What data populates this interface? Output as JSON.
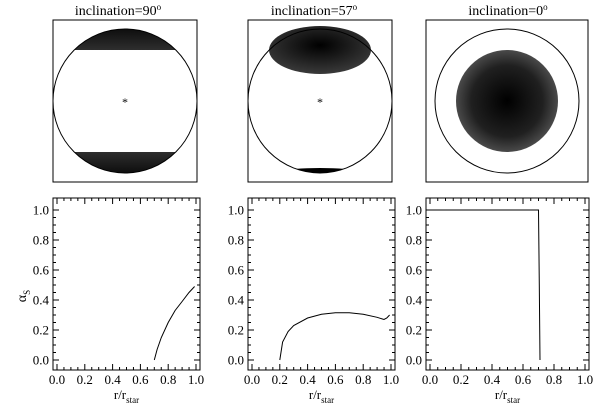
{
  "panels": [
    {
      "title_prefix": "inclination=",
      "inclination_value": "90",
      "degree_symbol": "o"
    },
    {
      "title_prefix": "inclination=",
      "inclination_value": "57",
      "degree_symbol": "o"
    },
    {
      "title_prefix": "inclination=",
      "inclination_value": "0",
      "degree_symbol": "o"
    }
  ],
  "spot_images": [
    {
      "description": "two dark polar caps at top and bottom of stellar disk, with central star marker",
      "center_marker": "*"
    },
    {
      "description": "one dark elliptical spot in upper half and thin dark arc at bottom of disk, with central star marker",
      "center_marker": "*"
    },
    {
      "description": "dark circular spot concentric with disk, darkest at center"
    }
  ],
  "colors": {
    "spot_dark": "#000000",
    "line": "#000000",
    "background": "#ffffff"
  },
  "chart_data": [
    {
      "type": "line",
      "title": "inclination=90°",
      "xlabel_main": "r/r",
      "xlabel_sub": "star",
      "ylabel_main": "α",
      "ylabel_sub": "S",
      "xlim": [
        0.0,
        1.0
      ],
      "ylim": [
        0.0,
        1.05
      ],
      "xticks": [
        "0.0",
        "0.2",
        "0.4",
        "0.6",
        "0.8",
        "1.0"
      ],
      "yticks": [
        "0.0",
        "0.2",
        "0.4",
        "0.6",
        "0.8",
        "1.0"
      ],
      "x": [
        0.7,
        0.72,
        0.75,
        0.8,
        0.85,
        0.9,
        0.95,
        0.99
      ],
      "y": [
        0.0,
        0.07,
        0.15,
        0.25,
        0.33,
        0.39,
        0.45,
        0.49
      ]
    },
    {
      "type": "line",
      "title": "inclination=57°",
      "xlabel_main": "r/r",
      "xlabel_sub": "star",
      "xlim": [
        0.0,
        1.0
      ],
      "ylim": [
        0.0,
        1.05
      ],
      "xticks": [
        "0.0",
        "0.2",
        "0.4",
        "0.6",
        "0.8",
        "1.0"
      ],
      "yticks": [
        "0.0",
        "0.2",
        "0.4",
        "0.6",
        "0.8",
        "1.0"
      ],
      "x": [
        0.2,
        0.22,
        0.26,
        0.3,
        0.4,
        0.5,
        0.6,
        0.7,
        0.8,
        0.9,
        0.95,
        0.97,
        0.99
      ],
      "y": [
        0.0,
        0.12,
        0.19,
        0.23,
        0.28,
        0.305,
        0.315,
        0.315,
        0.305,
        0.285,
        0.27,
        0.28,
        0.3
      ]
    },
    {
      "type": "line",
      "title": "inclination=0°",
      "xlabel_main": "r/r",
      "xlabel_sub": "star",
      "xlim": [
        0.0,
        1.0
      ],
      "ylim": [
        0.0,
        1.05
      ],
      "xticks": [
        "0.0",
        "0.2",
        "0.4",
        "0.6",
        "0.8",
        "1.0"
      ],
      "yticks": [
        "0.0",
        "0.2",
        "0.4",
        "0.6",
        "0.8",
        "1.0"
      ],
      "x": [
        0.0,
        0.7,
        0.705,
        0.71
      ],
      "y": [
        1.0,
        1.0,
        0.5,
        0.0
      ]
    }
  ]
}
